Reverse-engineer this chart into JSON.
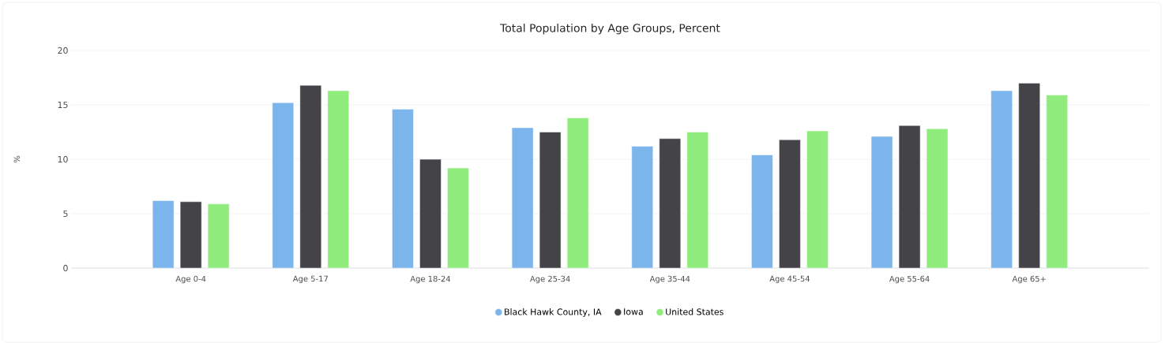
{
  "chart_data": {
    "type": "bar",
    "title": "Total Population by Age Groups, Percent",
    "ylabel": "%",
    "categories": [
      "Age 0-4",
      "Age 5-17",
      "Age 18-24",
      "Age 25-34",
      "Age 35-44",
      "Age 45-54",
      "Age 55-64",
      "Age 65+"
    ],
    "series": [
      {
        "name": "Black Hawk County, IA",
        "color": "#7cb5ec",
        "values": [
          6.2,
          15.2,
          14.6,
          12.9,
          11.2,
          10.4,
          12.1,
          16.3
        ]
      },
      {
        "name": "Iowa",
        "color": "#434348",
        "values": [
          6.1,
          16.8,
          10.0,
          12.5,
          11.9,
          11.8,
          13.1,
          17.0
        ]
      },
      {
        "name": "United States",
        "color": "#90ed7d",
        "values": [
          5.9,
          16.3,
          9.2,
          13.8,
          12.5,
          12.6,
          12.8,
          15.9
        ]
      }
    ],
    "ylim": [
      0,
      20
    ],
    "yticks": [
      0,
      5,
      10,
      15,
      20
    ],
    "grid": "y",
    "legend": "bottom"
  }
}
